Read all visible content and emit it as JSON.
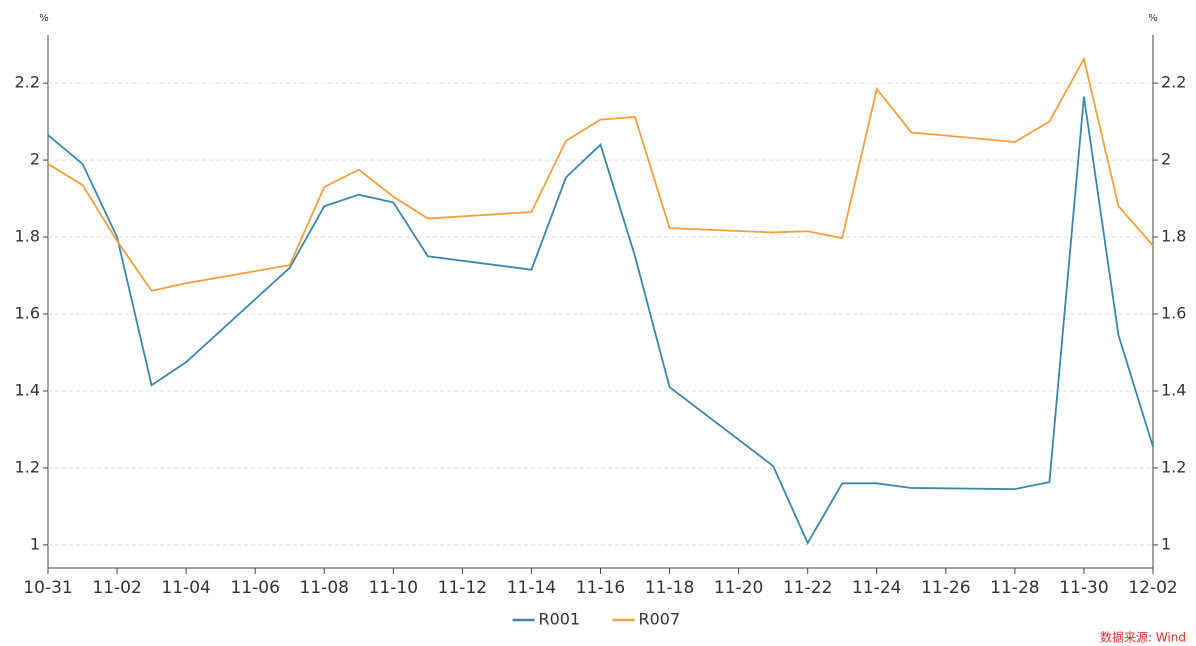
{
  "chart_data": {
    "type": "line",
    "y_unit": "%",
    "y2_unit": "%",
    "x": [
      "10-31",
      "11-01",
      "11-02",
      "11-03",
      "11-04",
      "11-07",
      "11-08",
      "11-09",
      "11-10",
      "11-11",
      "11-14",
      "11-15",
      "11-16",
      "11-17",
      "11-18",
      "11-21",
      "11-22",
      "11-23",
      "11-24",
      "11-25",
      "11-28",
      "11-29",
      "11-30",
      "12-01",
      "12-02"
    ],
    "xticks": [
      "10-31",
      "11-02",
      "11-04",
      "11-06",
      "11-08",
      "11-10",
      "11-12",
      "11-14",
      "11-16",
      "11-18",
      "11-20",
      "11-22",
      "11-24",
      "11-26",
      "11-28",
      "11-30",
      "12-02"
    ],
    "series": [
      {
        "name": "R001",
        "color": "#3a87ad",
        "values": [
          2.065,
          1.99,
          1.8,
          1.415,
          1.475,
          1.72,
          1.88,
          1.91,
          1.89,
          1.75,
          1.715,
          1.955,
          2.04,
          1.75,
          1.41,
          1.205,
          1.005,
          1.16,
          1.16,
          1.148,
          1.145,
          1.163,
          2.165,
          1.545,
          1.255
        ]
      },
      {
        "name": "R007",
        "color": "#f5a03c",
        "values": [
          1.99,
          1.935,
          1.79,
          1.66,
          1.68,
          1.727,
          1.93,
          1.975,
          1.905,
          1.848,
          1.865,
          2.05,
          2.105,
          2.112,
          1.823,
          1.812,
          1.815,
          1.797,
          2.185,
          2.072,
          2.047,
          2.1,
          2.263,
          1.88,
          1.778
        ]
      }
    ],
    "ylim": [
      0.94,
      2.325
    ],
    "yticks": [
      1,
      1.2,
      1.4,
      1.6,
      1.8,
      2,
      2.2
    ],
    "y2lim": [
      0.94,
      2.325
    ],
    "y2ticks": [
      1,
      1.2,
      1.4,
      1.6,
      1.8,
      2,
      2.2
    ],
    "grid": true,
    "legend": "bottom",
    "source": "数据来源: Wind"
  }
}
